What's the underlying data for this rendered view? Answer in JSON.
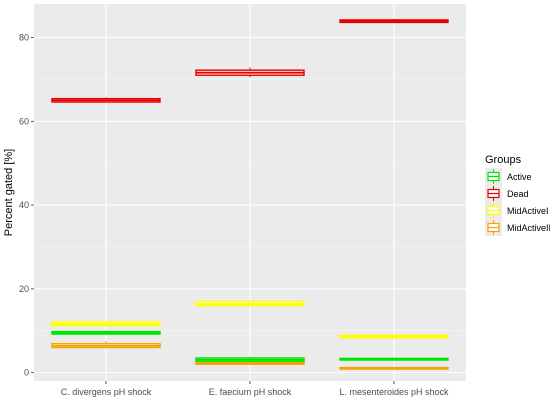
{
  "chart_data": {
    "type": "boxplot",
    "ylabel": "Percent gated [%]",
    "xlabel": "",
    "ylim": [
      -2,
      88
    ],
    "yticks": [
      0,
      20,
      40,
      60,
      80
    ],
    "grid": true,
    "legend_position": "right",
    "categories": [
      "C. divergens pH shock",
      "E. faecium pH shock",
      "L. mesenteroides pH shock"
    ],
    "legend": {
      "title": "Groups",
      "entries": [
        "Active",
        "Dead",
        "MidActiveI",
        "MidActiveII"
      ]
    },
    "series": [
      {
        "name": "Active",
        "color": "#00e600",
        "boxes": [
          {
            "q1": 9.2,
            "median": 9.5,
            "q3": 9.8,
            "min": 9.2,
            "max": 9.8
          },
          {
            "q1": 2.7,
            "median": 3.1,
            "q3": 3.5,
            "min": 2.6,
            "max": 3.8
          },
          {
            "q1": 3.0,
            "median": 3.2,
            "q3": 3.4,
            "min": 3.0,
            "max": 3.4
          }
        ]
      },
      {
        "name": "Dead",
        "color": "#e60000",
        "boxes": [
          {
            "q1": 64.6,
            "median": 65.0,
            "q3": 65.4,
            "min": 64.5,
            "max": 65.7
          },
          {
            "q1": 71.0,
            "median": 71.6,
            "q3": 72.2,
            "min": 70.5,
            "max": 72.8
          },
          {
            "q1": 83.6,
            "median": 83.9,
            "q3": 84.2,
            "min": 83.5,
            "max": 84.4
          }
        ]
      },
      {
        "name": "MidActiveI",
        "color": "#ffff00",
        "boxes": [
          {
            "q1": 11.2,
            "median": 11.6,
            "q3": 12.1,
            "min": 11.0,
            "max": 12.3
          },
          {
            "q1": 16.0,
            "median": 16.4,
            "q3": 16.9,
            "min": 15.8,
            "max": 17.2
          },
          {
            "q1": 8.3,
            "median": 8.6,
            "q3": 8.9,
            "min": 8.2,
            "max": 9.0
          }
        ]
      },
      {
        "name": "MidActiveII",
        "color": "#f5a300",
        "boxes": [
          {
            "q1": 6.0,
            "median": 6.4,
            "q3": 6.9,
            "min": 5.9,
            "max": 7.5
          },
          {
            "q1": 2.0,
            "median": 2.2,
            "q3": 2.4,
            "min": 1.9,
            "max": 2.5
          },
          {
            "q1": 0.9,
            "median": 1.0,
            "q3": 1.2,
            "min": 0.9,
            "max": 1.2
          }
        ]
      }
    ]
  }
}
